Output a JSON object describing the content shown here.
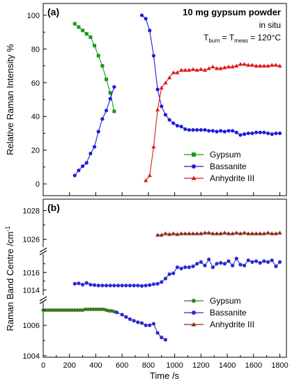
{
  "chart_data": [
    {
      "type": "line",
      "panel_label": "(a)",
      "title": "10 mg gypsum powder",
      "subtitle": "in situ",
      "condition": {
        "t1": "T",
        "s1": "burn",
        "eq1": " = T",
        "s2": "meas",
        "eq2": " = 120°C"
      },
      "ylabel": "Relative Raman Intensity %",
      "ylim": [
        -7,
        107
      ],
      "y_ticks": [
        0,
        20,
        40,
        60,
        80,
        100
      ],
      "xlim": [
        0,
        1850
      ],
      "legend_position": "bottom-right",
      "grid": false,
      "series": [
        {
          "name": "Gypsum",
          "color": "#1a9a1a",
          "marker": "square",
          "points": [
            [
              240,
              95
            ],
            [
              270,
              93
            ],
            [
              300,
              91
            ],
            [
              330,
              89
            ],
            [
              360,
              87
            ],
            [
              390,
              82
            ],
            [
              420,
              76
            ],
            [
              450,
              70
            ],
            [
              480,
              62
            ],
            [
              510,
              54
            ],
            [
              540,
              43
            ]
          ]
        },
        {
          "name": "Bassanite",
          "color": "#1c1cdc",
          "marker": "circle",
          "points": [
            [
              240,
              5
            ],
            [
              270,
              8
            ],
            [
              300,
              10.5
            ],
            [
              330,
              12.5
            ],
            [
              360,
              18
            ],
            [
              390,
              22
            ],
            [
              420,
              31
            ],
            [
              450,
              38.5
            ],
            [
              480,
              43.5
            ],
            [
              510,
              50.5
            ],
            [
              540,
              57.5
            ],
            [
              750,
              100
            ],
            [
              780,
              98
            ],
            [
              810,
              91
            ],
            [
              840,
              76
            ],
            [
              870,
              56
            ],
            [
              900,
              46
            ],
            [
              930,
              41
            ],
            [
              960,
              38
            ],
            [
              990,
              36
            ],
            [
              1020,
              34.5
            ],
            [
              1050,
              34
            ],
            [
              1080,
              32.5
            ],
            [
              1110,
              32
            ],
            [
              1140,
              32
            ],
            [
              1170,
              32
            ],
            [
              1200,
              32
            ],
            [
              1230,
              32
            ],
            [
              1260,
              31.5
            ],
            [
              1290,
              31.5
            ],
            [
              1320,
              31
            ],
            [
              1350,
              31.5
            ],
            [
              1380,
              31
            ],
            [
              1410,
              31.5
            ],
            [
              1440,
              31.5
            ],
            [
              1470,
              30.5
            ],
            [
              1500,
              29
            ],
            [
              1530,
              29.5
            ],
            [
              1560,
              30
            ],
            [
              1590,
              30
            ],
            [
              1620,
              30.5
            ],
            [
              1650,
              30.5
            ],
            [
              1680,
              30.5
            ],
            [
              1710,
              30
            ],
            [
              1740,
              29.5
            ],
            [
              1770,
              30
            ],
            [
              1800,
              30
            ]
          ]
        },
        {
          "name": "Anhydrite III",
          "color": "#e01818",
          "marker": "triangle",
          "points": [
            [
              780,
              2
            ],
            [
              810,
              5
            ],
            [
              840,
              22
            ],
            [
              870,
              44
            ],
            [
              900,
              57
            ],
            [
              930,
              60
            ],
            [
              960,
              63
            ],
            [
              990,
              66
            ],
            [
              1020,
              66
            ],
            [
              1050,
              67.5
            ],
            [
              1080,
              67.5
            ],
            [
              1110,
              67.5
            ],
            [
              1140,
              68
            ],
            [
              1170,
              67.5
            ],
            [
              1200,
              68
            ],
            [
              1230,
              67.5
            ],
            [
              1260,
              68.5
            ],
            [
              1290,
              69.5
            ],
            [
              1320,
              68.5
            ],
            [
              1350,
              68.5
            ],
            [
              1380,
              69
            ],
            [
              1410,
              69.5
            ],
            [
              1440,
              69.5
            ],
            [
              1470,
              70
            ],
            [
              1500,
              71
            ],
            [
              1530,
              71
            ],
            [
              1560,
              70.5
            ],
            [
              1590,
              70.5
            ],
            [
              1620,
              70
            ],
            [
              1650,
              70
            ],
            [
              1680,
              70
            ],
            [
              1710,
              70
            ],
            [
              1740,
              70.5
            ],
            [
              1770,
              70.5
            ],
            [
              1800,
              70
            ]
          ]
        }
      ]
    },
    {
      "type": "line",
      "panel_label": "(b)",
      "ylabel": "Raman Band Centre /cm",
      "ylabel_sup": "-1",
      "xlabel": "Time /s",
      "xlim": [
        0,
        1850
      ],
      "x_ticks": [
        0,
        200,
        400,
        600,
        800,
        1000,
        1200,
        1400,
        1600,
        1800
      ],
      "broken_y_axis": true,
      "segments": [
        {
          "ylim": [
            1025.2,
            1028.8
          ],
          "y_ticks": [
            1026,
            1028
          ]
        },
        {
          "ylim": [
            1012.9,
            1018.5
          ],
          "y_ticks": [
            1014,
            1016
          ]
        },
        {
          "ylim": [
            1003.9,
            1007.7
          ],
          "y_ticks": [
            1004,
            1006
          ]
        }
      ],
      "legend_position": "bottom-right",
      "grid": false,
      "series": [
        {
          "name": "Gypsum",
          "color": "#3a7a22",
          "marker": "circle",
          "points": [
            [
              0,
              1007
            ],
            [
              20,
              1007
            ],
            [
              40,
              1007
            ],
            [
              60,
              1007
            ],
            [
              80,
              1007
            ],
            [
              100,
              1007
            ],
            [
              120,
              1007
            ],
            [
              140,
              1007
            ],
            [
              160,
              1007
            ],
            [
              180,
              1007
            ],
            [
              200,
              1007
            ],
            [
              220,
              1007
            ],
            [
              240,
              1007
            ],
            [
              260,
              1007
            ],
            [
              280,
              1007
            ],
            [
              300,
              1007
            ],
            [
              320,
              1007.05
            ],
            [
              340,
              1007.05
            ],
            [
              360,
              1007.05
            ],
            [
              380,
              1007.05
            ],
            [
              400,
              1007.05
            ],
            [
              420,
              1007.05
            ],
            [
              440,
              1007.05
            ],
            [
              460,
              1007.05
            ],
            [
              480,
              1007
            ],
            [
              500,
              1006.95
            ],
            [
              520,
              1006.95
            ],
            [
              540,
              1006.9
            ]
          ]
        },
        {
          "name": "Bassanite",
          "color": "#2a2ad0",
          "marker": "circle",
          "points": [
            [
              240,
              1014.7
            ],
            [
              270,
              1014.75
            ],
            [
              300,
              1014.6
            ],
            [
              330,
              1014.8
            ],
            [
              360,
              1014.6
            ],
            [
              390,
              1014.55
            ],
            [
              420,
              1014.5
            ],
            [
              450,
              1014.5
            ],
            [
              480,
              1014.5
            ],
            [
              510,
              1014.5
            ],
            [
              540,
              1014.5
            ],
            [
              570,
              1014.5
            ],
            [
              600,
              1014.5
            ],
            [
              630,
              1014.5
            ],
            [
              660,
              1014.5
            ],
            [
              690,
              1014.5
            ],
            [
              720,
              1014.5
            ],
            [
              750,
              1014.45
            ],
            [
              780,
              1014.5
            ],
            [
              810,
              1014.55
            ],
            [
              840,
              1014.65
            ],
            [
              870,
              1014.7
            ],
            [
              900,
              1014.9
            ],
            [
              930,
              1015.3
            ],
            [
              960,
              1015.8
            ],
            [
              990,
              1015.9
            ],
            [
              1020,
              1016.6
            ],
            [
              1050,
              1016.45
            ],
            [
              1080,
              1016.6
            ],
            [
              1110,
              1016.6
            ],
            [
              1140,
              1016.7
            ],
            [
              1170,
              1017.0
            ],
            [
              1200,
              1017.2
            ],
            [
              1230,
              1016.8
            ],
            [
              1260,
              1017.5
            ],
            [
              1290,
              1016.6
            ],
            [
              1320,
              1017.0
            ],
            [
              1350,
              1017.1
            ],
            [
              1380,
              1017.0
            ],
            [
              1410,
              1017.3
            ],
            [
              1440,
              1016.8
            ],
            [
              1470,
              1017.6
            ],
            [
              1500,
              1016.9
            ],
            [
              1530,
              1016.8
            ],
            [
              1560,
              1017.4
            ],
            [
              1590,
              1017.2
            ],
            [
              1620,
              1017.3
            ],
            [
              1650,
              1017.1
            ],
            [
              1680,
              1017.3
            ],
            [
              1710,
              1017.2
            ],
            [
              1740,
              1017.4
            ],
            [
              1770,
              1016.7
            ],
            [
              1800,
              1017.2
            ],
            [
              560,
              1006.85
            ],
            [
              600,
              1006.7
            ],
            [
              630,
              1006.55
            ],
            [
              660,
              1006.4
            ],
            [
              690,
              1006.3
            ],
            [
              720,
              1006.2
            ],
            [
              750,
              1006.15
            ],
            [
              780,
              1006.0
            ],
            [
              810,
              1006.0
            ],
            [
              840,
              1006.1
            ],
            [
              870,
              1005.5
            ],
            [
              900,
              1005.2
            ],
            [
              930,
              1005.05
            ]
          ]
        },
        {
          "name": "Anhydrite III",
          "color": "#8a2a1a",
          "marker": "triangle",
          "points": [
            [
              870,
              1026.3
            ],
            [
              900,
              1026.3
            ],
            [
              930,
              1026.4
            ],
            [
              960,
              1026.35
            ],
            [
              990,
              1026.4
            ],
            [
              1020,
              1026.35
            ],
            [
              1050,
              1026.4
            ],
            [
              1080,
              1026.4
            ],
            [
              1110,
              1026.4
            ],
            [
              1140,
              1026.4
            ],
            [
              1170,
              1026.4
            ],
            [
              1200,
              1026.4
            ],
            [
              1230,
              1026.45
            ],
            [
              1260,
              1026.45
            ],
            [
              1290,
              1026.4
            ],
            [
              1320,
              1026.4
            ],
            [
              1350,
              1026.4
            ],
            [
              1380,
              1026.45
            ],
            [
              1410,
              1026.4
            ],
            [
              1440,
              1026.4
            ],
            [
              1470,
              1026.45
            ],
            [
              1500,
              1026.4
            ],
            [
              1530,
              1026.45
            ],
            [
              1560,
              1026.4
            ],
            [
              1590,
              1026.4
            ],
            [
              1620,
              1026.4
            ],
            [
              1650,
              1026.4
            ],
            [
              1680,
              1026.4
            ],
            [
              1710,
              1026.45
            ],
            [
              1740,
              1026.4
            ],
            [
              1770,
              1026.4
            ],
            [
              1800,
              1026.45
            ]
          ]
        }
      ]
    }
  ]
}
